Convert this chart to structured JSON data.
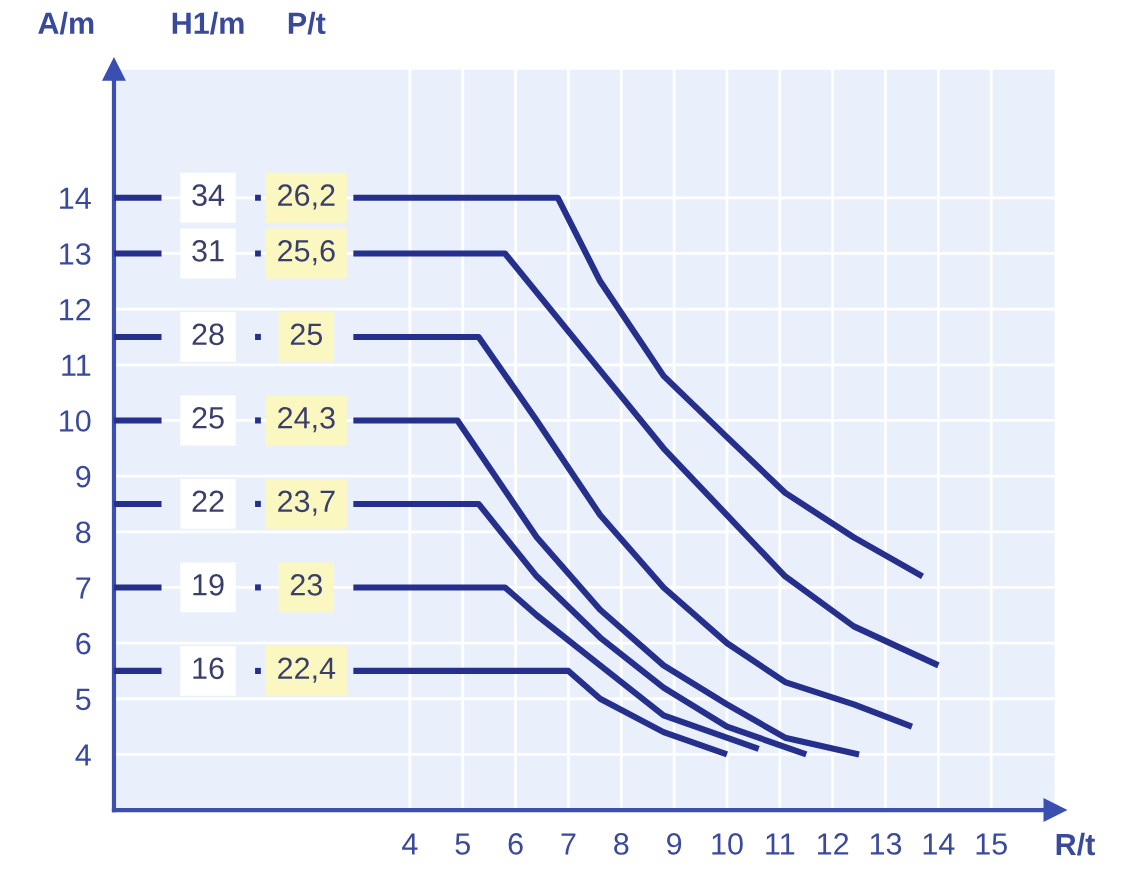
{
  "chart_data": {
    "type": "line",
    "xlabel": "R/t",
    "ylabel": "A/m",
    "xlim": [
      -1.6,
      16.2
    ],
    "ylim": [
      3,
      16.3
    ],
    "xticks": [
      4,
      5,
      6,
      7,
      8,
      9,
      10,
      11,
      12,
      13,
      14,
      15
    ],
    "yticks": [
      4,
      5,
      6,
      7,
      8,
      9,
      10,
      11,
      12,
      13,
      14
    ],
    "grid": true,
    "line_style": "solid",
    "series": [
      {
        "color": "#252f8c",
        "x": [
          2.93,
          6.8,
          7.6,
          8.8,
          10.0,
          11.1,
          12.4,
          13.7
        ],
        "values": [
          14,
          14,
          12.5,
          10.8,
          9.7,
          8.7,
          7.9,
          7.2
        ]
      },
      {
        "color": "#252f8c",
        "x": [
          2.93,
          5.8,
          7.6,
          8.8,
          10.0,
          11.1,
          12.4,
          14.0
        ],
        "values": [
          13,
          13,
          10.9,
          9.5,
          8.3,
          7.2,
          6.3,
          5.6
        ]
      },
      {
        "color": "#252f8c",
        "x": [
          2.93,
          5.3,
          6.4,
          7.6,
          8.8,
          10.0,
          11.1,
          12.4,
          13.5
        ],
        "values": [
          11.5,
          11.5,
          10.0,
          8.3,
          7.0,
          6.0,
          5.3,
          4.9,
          4.5
        ]
      },
      {
        "color": "#252f8c",
        "x": [
          2.93,
          4.9,
          6.4,
          7.6,
          8.8,
          10.0,
          11.1,
          12.5
        ],
        "values": [
          10,
          10,
          7.9,
          6.6,
          5.6,
          4.9,
          4.3,
          4.0
        ]
      },
      {
        "color": "#252f8c",
        "x": [
          2.93,
          5.3,
          6.4,
          7.6,
          8.8,
          10.0,
          11.5
        ],
        "values": [
          8.5,
          8.5,
          7.2,
          6.1,
          5.2,
          4.5,
          4.0
        ]
      },
      {
        "color": "#252f8c",
        "x": [
          2.93,
          5.8,
          6.4,
          7.6,
          8.8,
          10.6
        ],
        "values": [
          7,
          7,
          6.5,
          5.6,
          4.7,
          4.1
        ]
      },
      {
        "color": "#252f8c",
        "x": [
          2.93,
          7.0,
          7.6,
          8.8,
          10.0
        ],
        "values": [
          5.5,
          5.5,
          5.0,
          4.4,
          4.0
        ]
      }
    ],
    "annotations": [
      "H1/m",
      "P/t",
      "34",
      "26,2",
      "31",
      "25,6",
      "28",
      "25",
      "25",
      "24,3",
      "22",
      "23,7",
      "19",
      "23",
      "16",
      "22,4"
    ]
  }
}
